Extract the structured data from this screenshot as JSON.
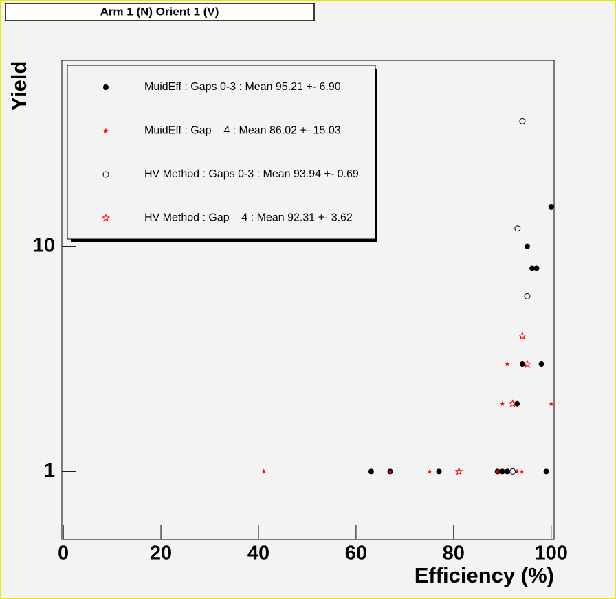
{
  "chart_data": {
    "type": "scatter",
    "title": "Arm 1 (N) Orient 1 (V)",
    "x_label": "Efficiency (%)",
    "y_label": "Yield",
    "xlim": [
      -0.3,
      100.6
    ],
    "ylim": [
      0.5,
      67
    ],
    "y_scale": "log",
    "xticks": [
      0,
      20,
      40,
      60,
      80,
      100
    ],
    "yticks": [
      1,
      10
    ],
    "series": [
      {
        "name": "MuidEff : Gaps 0-3 : Mean 95.21 +- 6.90",
        "color": "#000000",
        "marker": "filled-circle",
        "x": [
          100,
          95.1,
          96.1,
          97,
          94.1,
          98,
          93,
          63.1,
          67,
          77,
          89,
          90,
          91,
          99
        ],
        "values": [
          15,
          10,
          8,
          8,
          3,
          3,
          2,
          1,
          1,
          1,
          1,
          1,
          1,
          1
        ]
      },
      {
        "name": "MuidEff : Gap    4 : Mean 86.02 +- 15.03",
        "color": "#ff0000",
        "marker": "filled-star",
        "x": [
          41.1,
          67,
          75.1,
          89,
          93,
          94,
          90,
          100,
          91
        ],
        "values": [
          1,
          1,
          1,
          1,
          1,
          1,
          2,
          2,
          3
        ]
      },
      {
        "name": "HV Method : Gaps 0-3 : Mean 93.94 +- 0.69",
        "color": "#000000",
        "marker": "open-circle",
        "x": [
          94.1,
          93.1,
          95.1,
          92.1
        ],
        "values": [
          36,
          12,
          6,
          1
        ]
      },
      {
        "name": "HV Method : Gap    4 : Mean 92.31 +- 3.62",
        "color": "#ff0000",
        "marker": "open-star",
        "x": [
          81.1,
          92.1,
          94.1,
          95.1
        ],
        "values": [
          1,
          2,
          4,
          3
        ]
      }
    ]
  }
}
